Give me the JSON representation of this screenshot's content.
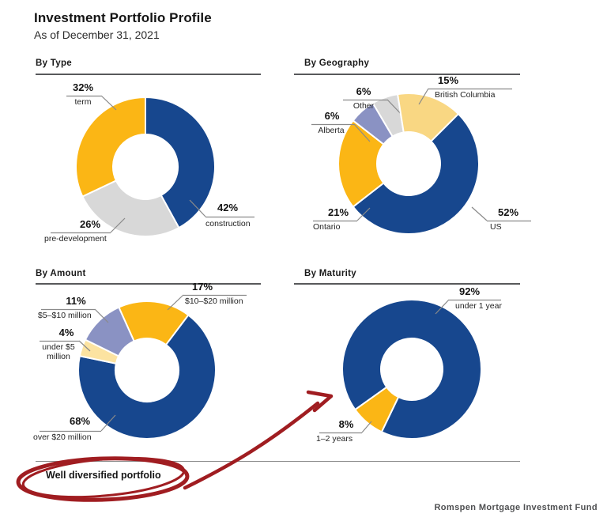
{
  "page": {
    "title": "Investment Portfolio Profile",
    "subtitle": "As of December 31, 2021",
    "annotation": "Well diversified portfolio",
    "footer": "Romspen Mortgage Investment Fund"
  },
  "colors": {
    "navy": "#17478E",
    "gold": "#FBB615",
    "gray": "#D8D8D8",
    "slate": "#8A92C3",
    "pale_gold": "#F9D783",
    "cream": "#FCE3A1",
    "annotation_red": "#A01D21",
    "rule_dark": "#58595B",
    "leader_gray": "#8A8A8A"
  },
  "chart_data": [
    {
      "id": "type",
      "type": "pie",
      "title": "By Type",
      "start_angle": 0,
      "series": [
        {
          "label": "construction",
          "value": 42,
          "color": "#17478E"
        },
        {
          "label": "pre-development",
          "value": 26,
          "color": "#D8D8D8"
        },
        {
          "label": "term",
          "value": 32,
          "color": "#FBB615"
        }
      ]
    },
    {
      "id": "geography",
      "type": "pie",
      "title": "By Geography",
      "start_angle": 45,
      "series": [
        {
          "label": "US",
          "value": 52,
          "color": "#17478E"
        },
        {
          "label": "Ontario",
          "value": 21,
          "color": "#FBB615"
        },
        {
          "label": "Alberta",
          "value": 6,
          "color": "#8A92C3"
        },
        {
          "label": "Other",
          "value": 6,
          "color": "#D8D8D8"
        },
        {
          "label": "British Columbia",
          "value": 15,
          "color": "#F9D783"
        }
      ]
    },
    {
      "id": "amount",
      "type": "pie",
      "title": "By Amount",
      "start_angle": 335.8,
      "series": [
        {
          "label": "$10–$20 million",
          "value": 17,
          "color": "#FBB615"
        },
        {
          "label": "over $20 million",
          "value": 68,
          "color": "#17478E"
        },
        {
          "label": "under $5 million",
          "value": 4,
          "color": "#FCE3A1"
        },
        {
          "label": "$5–$10 million",
          "value": 11,
          "color": "#8A92C3"
        }
      ]
    },
    {
      "id": "maturity",
      "type": "pie",
      "title": "By Maturity",
      "start_angle": 234.5,
      "series": [
        {
          "label": "under 1 year",
          "value": 92,
          "color": "#17478E"
        },
        {
          "label": "1–2 years",
          "value": 8,
          "color": "#FBB615"
        }
      ]
    }
  ]
}
